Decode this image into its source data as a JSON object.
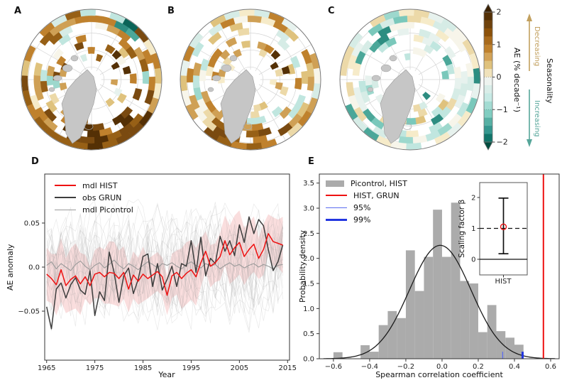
{
  "chart_data": {
    "maps": {
      "type": "heatmap",
      "projection": "north-polar",
      "description": "Arctic maps of AE trend (% per decade), panels A-C",
      "value_range": [
        -2,
        2
      ],
      "land_color": "#c6c6c6",
      "panels": [
        {
          "label": "A",
          "seed": 7,
          "bias": 0.52,
          "spread": 0.85,
          "coverage": 0.92
        },
        {
          "label": "B",
          "seed": 19,
          "bias": 0.26,
          "spread": 0.55,
          "coverage": 0.85
        },
        {
          "label": "C",
          "seed": 31,
          "bias": -0.05,
          "spread": 0.3,
          "coverage": 0.82
        }
      ]
    },
    "colorbar": {
      "axis_label": "AE (% decade⁻¹)",
      "seasonality_label": "Seasonality",
      "decreasing_label": "Decreasing",
      "increasing_label": "Increasing",
      "decreasing_color": "#c2a05e",
      "increasing_color": "#56a69a",
      "ticks": [
        "2",
        "1",
        "0",
        "−1",
        "−2"
      ],
      "tick_values": [
        2,
        1,
        0,
        -1,
        -2
      ],
      "segments": [
        "#543005",
        "#6f420c",
        "#8c510a",
        "#a86a1c",
        "#bf812d",
        "#d2a257",
        "#dfc27d",
        "#f0e2bb",
        "#eef3ef",
        "#d9ede8",
        "#c7eae5",
        "#a3dcd3",
        "#80cdc1",
        "#57b0a4",
        "#35978f",
        "#11756a"
      ],
      "arrow_top_color": "#3a2103",
      "arrow_bottom_color": "#004c3f"
    },
    "timeseries": {
      "type": "line",
      "label": "D",
      "xlabel": "Year",
      "ylabel": "AE anomaly",
      "xticks": [
        "1965",
        "1975",
        "1985",
        "1995",
        "2005",
        "2015"
      ],
      "xtick_values": [
        1965,
        1975,
        1985,
        1995,
        2005,
        2015
      ],
      "yticks": [
        "0.05",
        "0.0",
        "−0.05"
      ],
      "ytick_values": [
        0.05,
        0.0,
        -0.05
      ],
      "xlim": [
        1964.6,
        2015.4
      ],
      "ylim": [
        -0.1056,
        0.1056
      ],
      "start_year": 1965,
      "legend": [
        {
          "label": "mdl HIST",
          "color": "#ee1111",
          "width": 2
        },
        {
          "label": "obs GRUN",
          "color": "#3d3d3d",
          "width": 2
        },
        {
          "label": "mdl Picontrol",
          "color": "#9a9a9a",
          "width": 1
        }
      ],
      "series": {
        "mdl_hist": [
          -0.008,
          -0.013,
          -0.02,
          -0.003,
          -0.021,
          -0.014,
          -0.01,
          -0.019,
          -0.011,
          -0.021,
          -0.008,
          -0.006,
          -0.011,
          -0.006,
          -0.007,
          -0.013,
          -0.006,
          -0.025,
          -0.009,
          -0.016,
          -0.008,
          -0.013,
          -0.009,
          -0.005,
          -0.011,
          -0.032,
          -0.01,
          -0.006,
          -0.013,
          -0.007,
          -0.003,
          -0.011,
          0.005,
          0.018,
          0.001,
          0.005,
          0.012,
          0.03,
          0.014,
          0.022,
          0.028,
          0.012,
          0.02,
          0.026,
          0.01,
          0.02,
          0.038,
          0.029,
          0.027,
          0.025
        ],
        "obs_grun": [
          -0.045,
          -0.07,
          -0.025,
          -0.018,
          -0.035,
          -0.02,
          -0.012,
          -0.026,
          -0.031,
          -0.004,
          -0.055,
          -0.028,
          -0.038,
          0.017,
          -0.006,
          -0.04,
          -0.01,
          -0.001,
          -0.03,
          -0.014,
          0.012,
          0.015,
          -0.022,
          0.004,
          -0.026,
          -0.014,
          0.001,
          -0.022,
          0.004,
          0.001,
          0.03,
          -0.006,
          0.034,
          -0.01,
          0.01,
          0.004,
          0.035,
          0.018,
          0.03,
          0.013,
          0.048,
          0.028,
          0.057,
          0.038,
          0.054,
          0.047,
          0.02,
          -0.004,
          0.006,
          0.025
        ],
        "picontrol_mean": [
          0.002,
          0.006,
          -0.002,
          0.004,
          0.0,
          -0.004,
          0.003,
          0.007,
          0.001,
          -0.003,
          0.002,
          0.005,
          -0.001,
          0.003,
          0.008,
          0.002,
          -0.002,
          0.004,
          0.001,
          -0.003,
          0.002,
          0.006,
          0.003,
          -0.001,
          0.004,
          0.002,
          0.005,
          0.001,
          -0.002,
          0.003,
          0.006,
          0.002,
          -0.001,
          0.004,
          0.001,
          0.003,
          -0.002,
          0.002,
          0.005,
          0.001,
          0.003,
          -0.001,
          0.002,
          0.004,
          0.0,
          0.003,
          0.001,
          -0.002,
          0.002,
          0.003
        ]
      },
      "band": {
        "halfwidth": 0.031,
        "color": "#e03030",
        "opacity": 0.16
      },
      "ensemble": {
        "count": 24,
        "seed": 5,
        "color": "#9a9a9a",
        "opacity": 0.22
      }
    },
    "histogram": {
      "type": "bar",
      "label": "E",
      "xlabel": "Spearman correlation coefficient",
      "ylabel": "Probability density",
      "xticks": [
        "−0.6",
        "−0.4",
        "−0.2",
        "0.0",
        "0.2",
        "0.4",
        "0.6"
      ],
      "xtick_values": [
        -0.6,
        -0.4,
        -0.2,
        0.0,
        0.2,
        0.4,
        0.6
      ],
      "yticks": [
        "0.0",
        "0.5",
        "1.0",
        "1.5",
        "2.0",
        "2.5",
        "3.0",
        "3.5"
      ],
      "ytick_values": [
        0.0,
        0.5,
        1.0,
        1.5,
        2.0,
        2.5,
        3.0,
        3.5
      ],
      "xlim": [
        -0.678,
        0.647
      ],
      "ylim": [
        0,
        3.68
      ],
      "bar_color": "#ababab",
      "bin_width": 0.05,
      "bars": [
        {
          "x": -0.575,
          "h": 0.13
        },
        {
          "x": -0.425,
          "h": 0.27
        },
        {
          "x": -0.375,
          "h": 0.14
        },
        {
          "x": -0.325,
          "h": 0.67
        },
        {
          "x": -0.275,
          "h": 0.95
        },
        {
          "x": -0.225,
          "h": 0.81
        },
        {
          "x": -0.175,
          "h": 2.16
        },
        {
          "x": -0.125,
          "h": 1.35
        },
        {
          "x": -0.075,
          "h": 2.03
        },
        {
          "x": -0.025,
          "h": 2.97
        },
        {
          "x": 0.025,
          "h": 2.03
        },
        {
          "x": 0.075,
          "h": 3.11
        },
        {
          "x": 0.125,
          "h": 1.55
        },
        {
          "x": 0.175,
          "h": 1.5
        },
        {
          "x": 0.225,
          "h": 0.53
        },
        {
          "x": 0.275,
          "h": 1.07
        },
        {
          "x": 0.325,
          "h": 0.55
        },
        {
          "x": 0.375,
          "h": 0.42
        },
        {
          "x": 0.425,
          "h": 0.28
        }
      ],
      "gauss": {
        "mean": -0.01,
        "sigma": 0.17,
        "peak": 2.26,
        "color": "#1c1c1c"
      },
      "vlines": [
        {
          "name": "hist-grun-correlation",
          "x": 0.56,
          "color": "#ee1111",
          "width": 2,
          "full_height": true
        },
        {
          "name": "p95-threshold",
          "x": 0.335,
          "color": "#5b6cf0",
          "width": 1.3,
          "h": 0.14
        },
        {
          "name": "p99-threshold",
          "x": 0.445,
          "color": "#2336e0",
          "width": 3,
          "h": 0.14
        }
      ],
      "legend": [
        {
          "label": "Picontrol, HIST",
          "type": "patch",
          "color": "#ababab"
        },
        {
          "label": "HIST, GRUN",
          "type": "line",
          "color": "#ee1111",
          "width": 2.2
        },
        {
          "label": "95%",
          "type": "line",
          "color": "#5b6cf0",
          "width": 1.3
        },
        {
          "label": "99%",
          "type": "line",
          "color": "#2336e0",
          "width": 3
        }
      ],
      "inset": {
        "ylabel": "Scaling factor β",
        "yticks": [
          "2",
          "1",
          "0"
        ],
        "ytick_values": [
          2,
          1,
          0
        ],
        "xtick_label": "HIST",
        "best_estimate": 1.05,
        "ci_low": 0.18,
        "ci_high": 1.98,
        "reference_dashed": 1,
        "baseline": 0,
        "marker_color": "#ee1111",
        "bar_color": "#111111"
      }
    }
  }
}
